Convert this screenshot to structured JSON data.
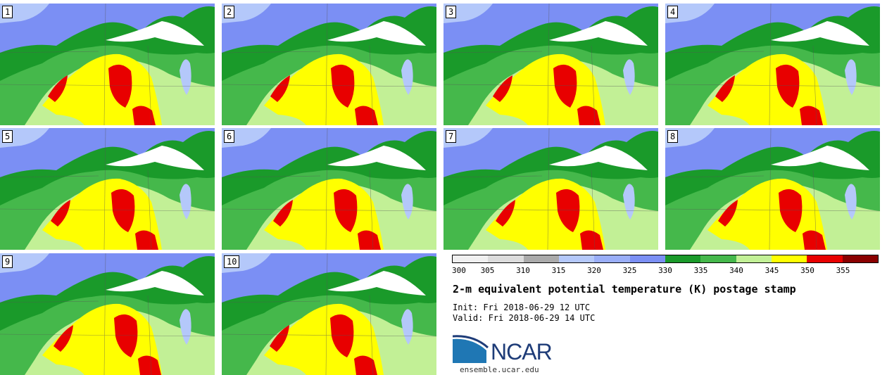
{
  "panels": [
    {
      "label": "1"
    },
    {
      "label": "2"
    },
    {
      "label": "3"
    },
    {
      "label": "4"
    },
    {
      "label": "5"
    },
    {
      "label": "6"
    },
    {
      "label": "7"
    },
    {
      "label": "8"
    },
    {
      "label": "9"
    },
    {
      "label": "10"
    }
  ],
  "colorbar": {
    "ticks": [
      "300",
      "305",
      "310",
      "315",
      "320",
      "325",
      "330",
      "335",
      "340",
      "345",
      "350",
      "355"
    ],
    "colors": [
      "#f0f0f0",
      "#dcdcdc",
      "#aaaaaa",
      "#b4c8fa",
      "#9aaef8",
      "#7b8ff4",
      "#1a9a2a",
      "#45b84b",
      "#c2f096",
      "#ffff00",
      "#e80000",
      "#8a0000"
    ]
  },
  "map_colors": {
    "pale": "#b4c8fa",
    "blue": "#7b8ff4",
    "green_dark": "#1a9a2a",
    "green": "#45b84b",
    "light_green": "#c2f096",
    "yellow": "#ffff00",
    "red": "#e80000",
    "white": "#ffffff"
  },
  "title": "2-m equivalent potential temperature (K) postage stamp",
  "init_text": "Init: Fri 2018-06-29 12 UTC",
  "valid_text": "Valid: Fri 2018-06-29 14 UTC",
  "logo": {
    "text": "NCAR",
    "url": "ensemble.ucar.edu"
  }
}
